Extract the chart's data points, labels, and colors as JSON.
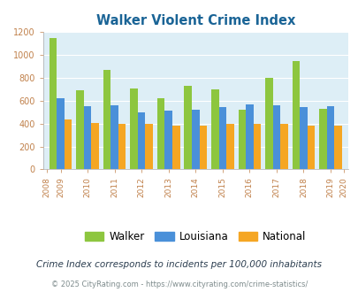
{
  "title": "Walker Violent Crime Index",
  "years": [
    2009,
    2010,
    2011,
    2012,
    2013,
    2014,
    2015,
    2016,
    2017,
    2018,
    2019
  ],
  "walker": [
    1150,
    690,
    870,
    705,
    625,
    730,
    700,
    520,
    800,
    945,
    530
  ],
  "louisiana": [
    620,
    550,
    560,
    495,
    510,
    520,
    545,
    565,
    560,
    545,
    550
  ],
  "national": [
    435,
    405,
    395,
    395,
    380,
    380,
    395,
    400,
    400,
    380,
    380
  ],
  "walker_color": "#8dc63f",
  "louisiana_color": "#4a90d9",
  "national_color": "#f5a623",
  "bg_color": "#ddeef6",
  "ylim": [
    0,
    1200
  ],
  "yticks": [
    0,
    200,
    400,
    600,
    800,
    1000,
    1200
  ],
  "footnote1": "Crime Index corresponds to incidents per 100,000 inhabitants",
  "footnote2": "© 2025 CityRating.com - https://www.cityrating.com/crime-statistics/",
  "title_color": "#1a6496",
  "tick_color": "#c0804a",
  "footnote1_color": "#2c3e50",
  "footnote2_color": "#7f8c8d",
  "footnote2_link_color": "#4a90d9"
}
